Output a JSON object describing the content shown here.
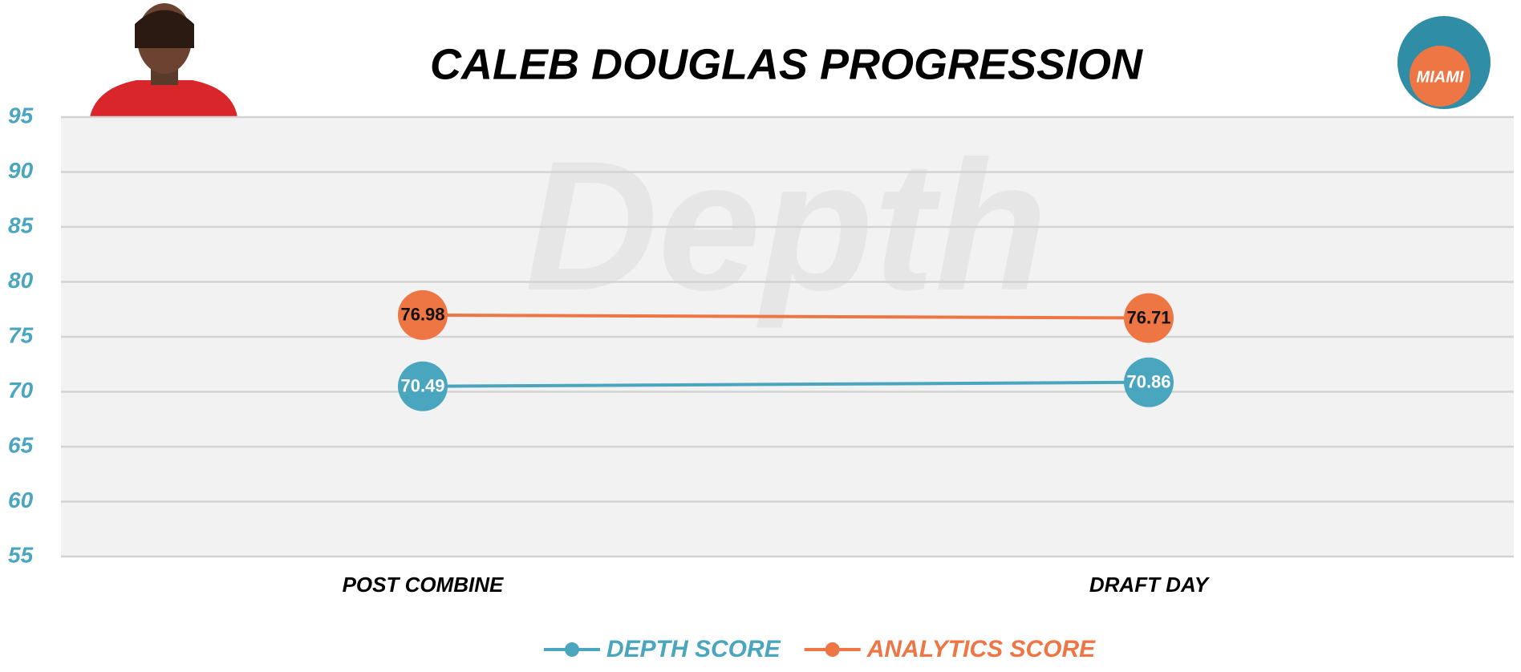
{
  "chart_data": {
    "type": "line",
    "title": "CALEB DOUGLAS PROGRESSION",
    "watermark": "Depth",
    "logo_text": "MIAMI",
    "categories": [
      "POST COMBINE",
      "DRAFT DAY"
    ],
    "series": [
      {
        "name": "DEPTH SCORE",
        "color": "#4aa5bf",
        "values": [
          70.49,
          70.86
        ]
      },
      {
        "name": "ANALYTICS SCORE",
        "color": "#ee7644",
        "values": [
          76.98,
          76.71
        ]
      }
    ],
    "ylim": [
      55,
      95
    ],
    "yticks": [
      55,
      60,
      65,
      70,
      75,
      80,
      85,
      90,
      95
    ],
    "grid": true,
    "legend": "bottom"
  }
}
